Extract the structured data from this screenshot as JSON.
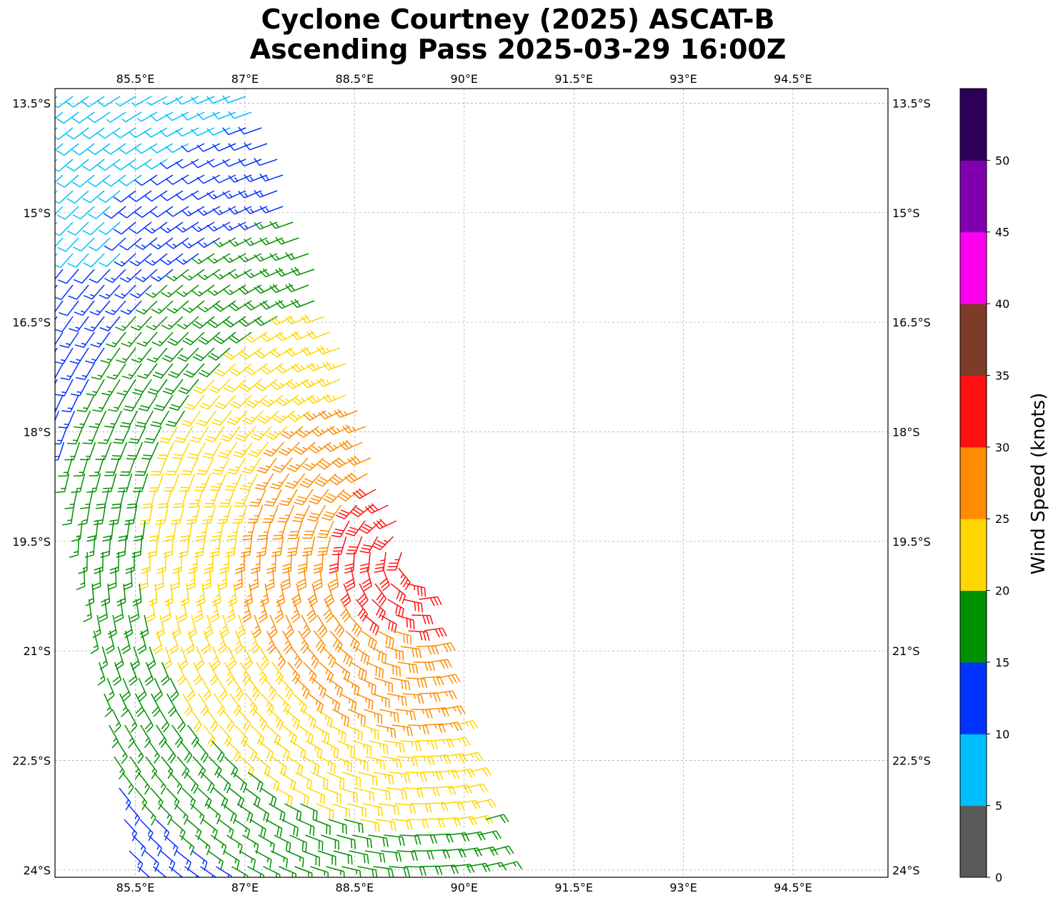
{
  "title": {
    "line1": "Cyclone Courtney (2025) ASCAT-B",
    "line2": "Ascending Pass 2025-03-29 16:00Z"
  },
  "map": {
    "lon_range": [
      84.4,
      95.8
    ],
    "lat_range": [
      -24.1,
      -13.3
    ],
    "lon_ticks": [
      {
        "value": 85.5,
        "label": "85.5°E"
      },
      {
        "value": 87.0,
        "label": "87°E"
      },
      {
        "value": 88.5,
        "label": "88.5°E"
      },
      {
        "value": 90.0,
        "label": "90°E"
      },
      {
        "value": 91.5,
        "label": "91.5°E"
      },
      {
        "value": 93.0,
        "label": "93°E"
      },
      {
        "value": 94.5,
        "label": "94.5°E"
      }
    ],
    "lat_ticks": [
      {
        "value": -13.5,
        "label": "13.5°S"
      },
      {
        "value": -15.0,
        "label": "15°S"
      },
      {
        "value": -16.5,
        "label": "16.5°S"
      },
      {
        "value": -18.0,
        "label": "18°S"
      },
      {
        "value": -19.5,
        "label": "19.5°S"
      },
      {
        "value": -21.0,
        "label": "21°S"
      },
      {
        "value": -22.5,
        "label": "22.5°S"
      },
      {
        "value": -24.0,
        "label": "24°S"
      }
    ],
    "gridlines": true,
    "storm_center": {
      "lon": 89.3,
      "lat": -19.7
    }
  },
  "colorbar": {
    "label": "Wind Speed (knots)",
    "bins": [
      {
        "min": 0,
        "max": 5,
        "color": "#595959"
      },
      {
        "min": 5,
        "max": 10,
        "color": "#00bfff"
      },
      {
        "min": 10,
        "max": 15,
        "color": "#0033ff"
      },
      {
        "min": 15,
        "max": 20,
        "color": "#009000"
      },
      {
        "min": 20,
        "max": 25,
        "color": "#ffd700"
      },
      {
        "min": 25,
        "max": 30,
        "color": "#ff8c00"
      },
      {
        "min": 30,
        "max": 35,
        "color": "#ff0f0f"
      },
      {
        "min": 35,
        "max": 40,
        "color": "#7f3b29"
      },
      {
        "min": 40,
        "max": 45,
        "color": "#ff00ee"
      },
      {
        "min": 45,
        "max": 50,
        "color": "#8000b0"
      },
      {
        "min": 50,
        "max": 55,
        "color": "#2d0057"
      }
    ],
    "tick_labels": [
      "0",
      "5",
      "10",
      "15",
      "20",
      "25",
      "30",
      "35",
      "40",
      "45",
      "50"
    ]
  }
}
